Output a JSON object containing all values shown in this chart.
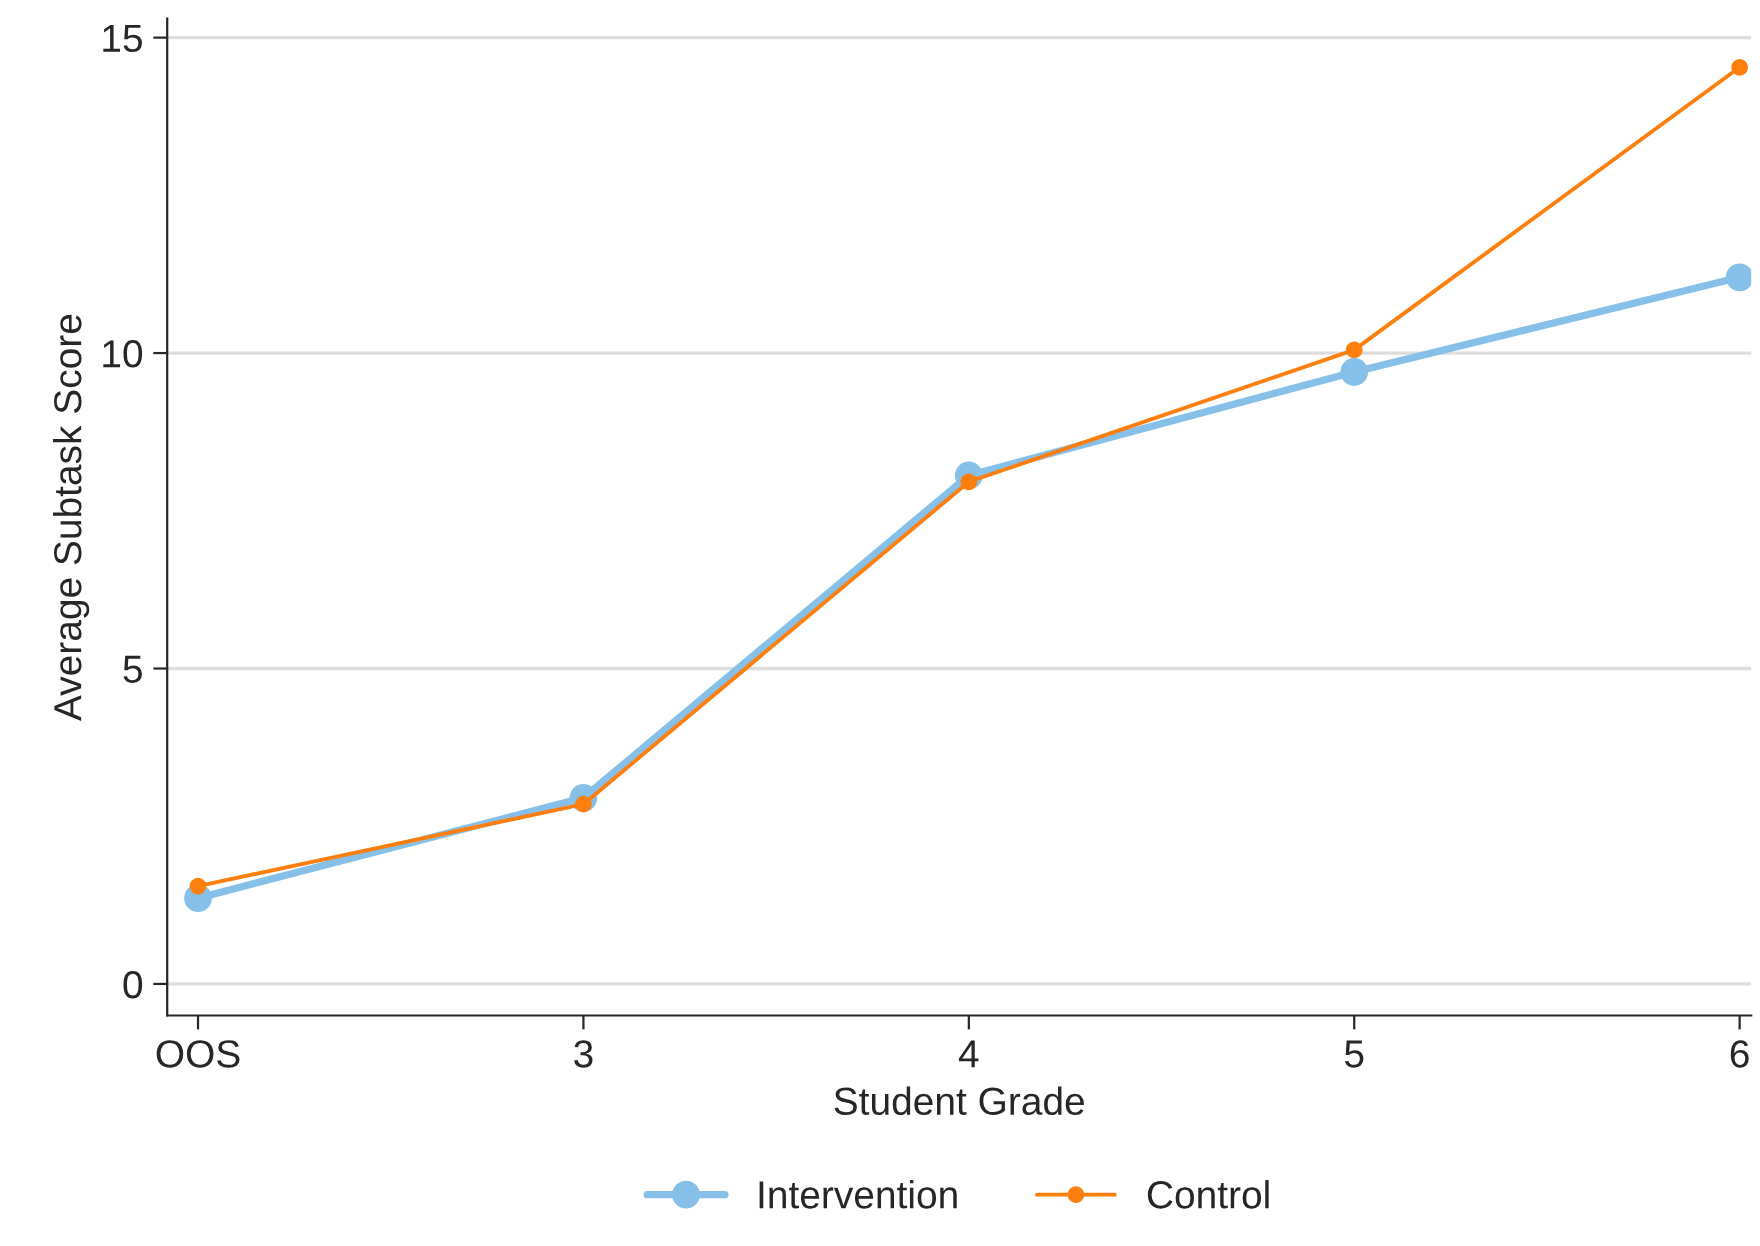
{
  "chart_data": {
    "type": "line",
    "xlabel": "Student Grade",
    "ylabel": "Average Subtask Score",
    "categories": [
      "OOS",
      "3",
      "4",
      "5",
      "6"
    ],
    "series": [
      {
        "name": "Intervention",
        "color": "#86c0e9",
        "values": [
          1.36,
          2.95,
          8.06,
          9.7,
          11.2
        ]
      },
      {
        "name": "Control",
        "color": "#ff7f0e",
        "values": [
          1.55,
          2.85,
          7.96,
          10.05,
          14.53
        ]
      }
    ],
    "ylim": [
      -0.5,
      15.3
    ],
    "yticks": [
      0,
      5,
      10,
      15
    ],
    "grid": "y",
    "legend": "bottom",
    "marker": "circle",
    "line_style": "solid"
  }
}
